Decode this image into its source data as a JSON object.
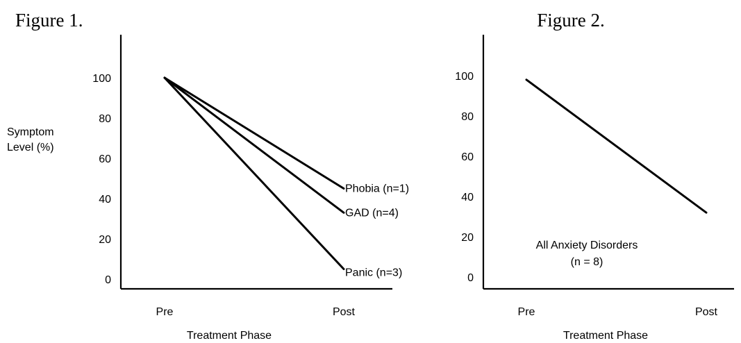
{
  "chart_data": [
    {
      "type": "line",
      "title": "Figure 1.",
      "ylabel_lines": [
        "Symptom",
        "Level (%)"
      ],
      "xlabel": "Treatment Phase",
      "categories": [
        "Pre",
        "Post"
      ],
      "yticks": [
        0,
        20,
        40,
        60,
        80,
        100
      ],
      "ylim": [
        0,
        120
      ],
      "grid": false,
      "series": [
        {
          "name": "Phobia (n=1)",
          "values": [
            100,
            45
          ]
        },
        {
          "name": "GAD (n=4)",
          "values": [
            100,
            33
          ]
        },
        {
          "name": "Panic (n=3)",
          "values": [
            100,
            5
          ]
        }
      ]
    },
    {
      "type": "line",
      "title": "Figure 2.",
      "xlabel": "Treatment Phase",
      "categories": [
        "Pre",
        "Post"
      ],
      "yticks": [
        0,
        20,
        40,
        60,
        80,
        100
      ],
      "ylim": [
        0,
        120
      ],
      "grid": false,
      "annotation_lines": [
        "All Anxiety Disorders",
        "(n = 8)"
      ],
      "series": [
        {
          "values": [
            98,
            32
          ]
        }
      ]
    }
  ]
}
